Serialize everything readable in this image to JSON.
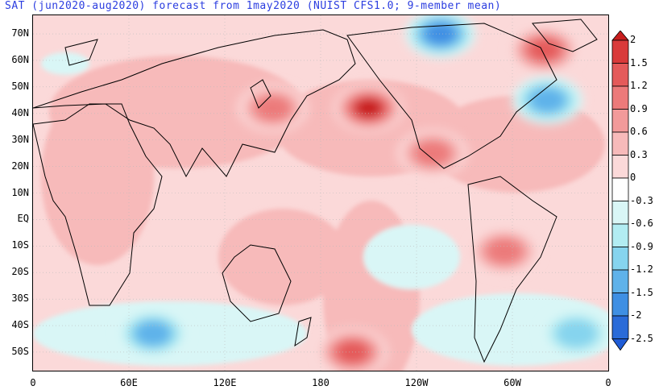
{
  "title": "SAT (jun2020-aug2020) forecast from 1may2020 (NUIST CFS1.0; 9-member mean)",
  "map": {
    "lat_labels": [
      "70N",
      "60N",
      "50N",
      "40N",
      "30N",
      "20N",
      "10N",
      "EQ",
      "10S",
      "20S",
      "30S",
      "40S",
      "50S"
    ],
    "lon_labels": [
      "0",
      "60E",
      "120E",
      "180",
      "120W",
      "60W",
      "0"
    ]
  },
  "colorbar": {
    "labels": [
      "2",
      "1.5",
      "1.2",
      "0.9",
      "0.6",
      "0.3",
      "0",
      "-0.3",
      "-0.6",
      "-0.9",
      "-1.2",
      "-1.5",
      "-2",
      "-2.5"
    ],
    "colors": [
      "#d93a3a",
      "#e45a5a",
      "#ec7a7a",
      "#f29a9a",
      "#f7baba",
      "#fbd9d9",
      "#ffffff",
      "#d9f6f6",
      "#b2ecf2",
      "#86d4ee",
      "#5fb2ea",
      "#3f8fe3",
      "#2a6bd8"
    ],
    "top_color": "#c81e1e",
    "bottom_color": "#1f5cd6"
  },
  "features": [
    {
      "name": "warm-north-pacific",
      "lon": 210,
      "lat": 42,
      "level": 2.0
    },
    {
      "name": "warm-greenland",
      "lon": 320,
      "lat": 64,
      "level": 1.5
    },
    {
      "name": "warm-east-asia",
      "lon": 150,
      "lat": 42,
      "level": 1.2
    },
    {
      "name": "warm-south-america",
      "lon": 295,
      "lat": -12,
      "level": 1.2
    },
    {
      "name": "warm-baja",
      "lon": 250,
      "lat": 25,
      "level": 1.2
    },
    {
      "name": "warm-central-pacific-south",
      "lon": 200,
      "lat": -50,
      "level": 1.5
    },
    {
      "name": "cold-north-atlantic",
      "lon": 322,
      "lat": 45,
      "level": -1.2
    },
    {
      "name": "cold-canada-arctic",
      "lon": 255,
      "lat": 70,
      "level": -1.5
    },
    {
      "name": "cold-southern-indian",
      "lon": 75,
      "lat": -43,
      "level": -1.2
    },
    {
      "name": "cold-south-atlantic",
      "lon": 340,
      "lat": -43,
      "level": -0.9
    }
  ]
}
